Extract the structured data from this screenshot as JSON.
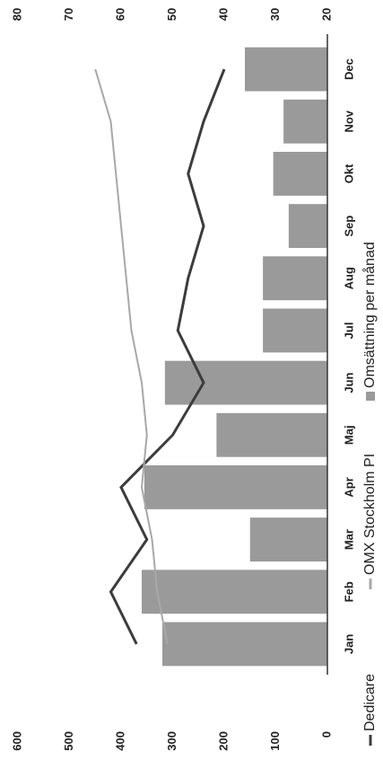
{
  "chart_data": {
    "type": "bar",
    "categories": [
      "Jan",
      "Feb",
      "Mar",
      "Apr",
      "Maj",
      "Jun",
      "Jul",
      "Aug",
      "Sep",
      "Okt",
      "Nov",
      "Dec"
    ],
    "values": [
      320,
      360,
      150,
      355,
      215,
      315,
      125,
      125,
      75,
      105,
      85,
      160
    ],
    "name": "Omsättning per månad",
    "color": "#9a9a9a",
    "ylim": [
      0,
      600
    ],
    "yticks": [
      0,
      100,
      200,
      300,
      400,
      500,
      600
    ],
    "series": [
      {
        "name": "Dedicare",
        "color": "#3c3c3c",
        "axis": "y2",
        "values": [
          57,
          62,
          55,
          60,
          50,
          44,
          49,
          47,
          44,
          47,
          44,
          40
        ]
      },
      {
        "name": "OMX Stockholm PI",
        "color": "#a8a8a8",
        "axis": "y2",
        "values": [
          51,
          53,
          54,
          56,
          55,
          56,
          58,
          59,
          60,
          61,
          62,
          65
        ]
      }
    ],
    "y2lim": [
      20,
      80
    ],
    "y2ticks": [
      20,
      30,
      40,
      50,
      60,
      70,
      80
    ]
  }
}
